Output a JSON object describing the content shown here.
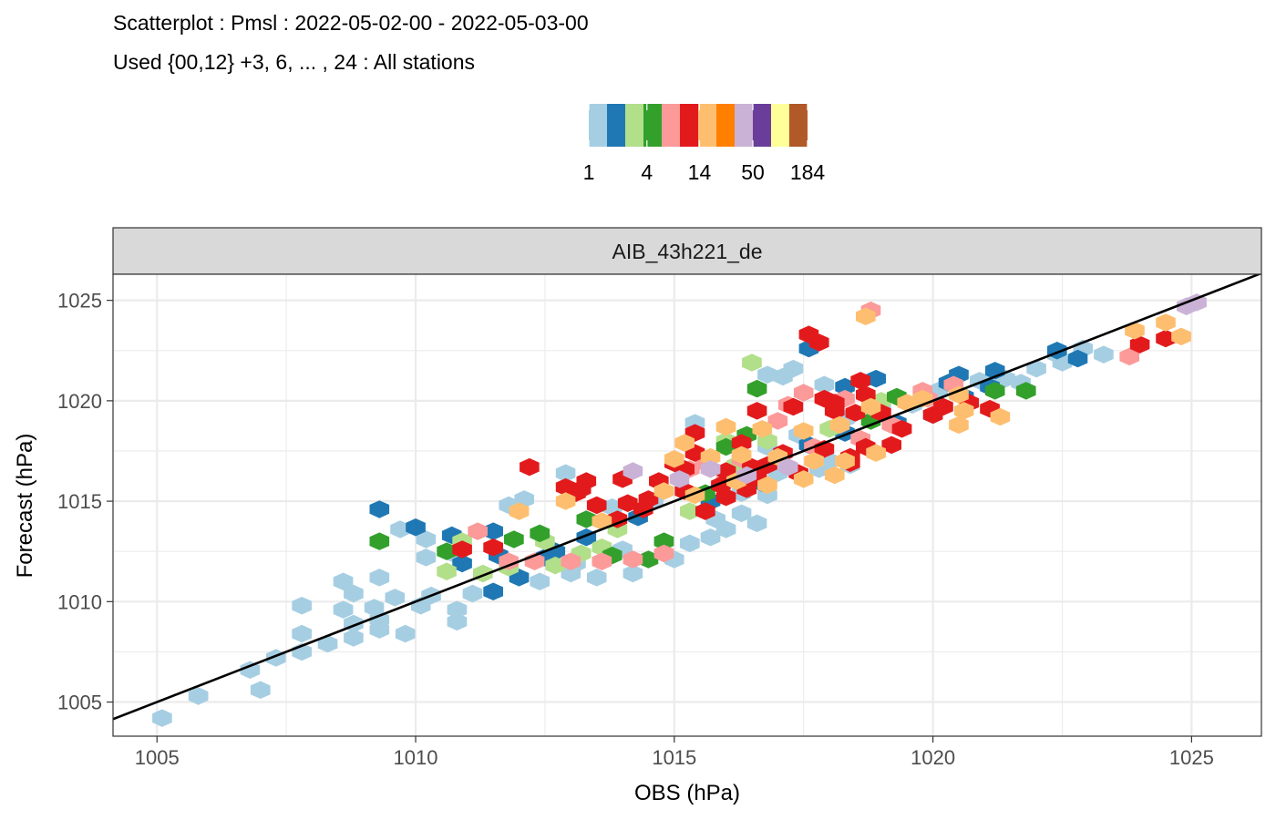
{
  "chart_data": {
    "type": "heatmap",
    "title": "Scatterplot : Pmsl : 2022-05-02-00 - 2022-05-03-00",
    "subtitle": "Used {00,12} +3, 6, ... , 24 : All stations",
    "facet_label": "AIB_43h221_de",
    "xlabel": "OBS (hPa)",
    "ylabel": "Forecast (hPa)",
    "xlim": [
      1004.15,
      1026.35
    ],
    "ylim": [
      1003.3,
      1026.3
    ],
    "x_ticks": [
      1005,
      1010,
      1015,
      1020,
      1025
    ],
    "y_ticks": [
      1005,
      1010,
      1015,
      1020,
      1025
    ],
    "grid": true,
    "legend": {
      "placement": "top",
      "scale": "log",
      "tick_labels": [
        "1",
        "4",
        "14",
        "50",
        "184"
      ],
      "tick_values": [
        1,
        4,
        14,
        50,
        184
      ],
      "colors": [
        "#a6cee3",
        "#1f78b4",
        "#b2df8a",
        "#33a02c",
        "#fb9a99",
        "#e31a1c",
        "#fdbf6f",
        "#ff7f00",
        "#cab2d6",
        "#6a3d9a",
        "#ffff99",
        "#b15928"
      ]
    },
    "reference_line": {
      "x1": 1004.15,
      "y1": 1004.15,
      "x2": 1026.35,
      "y2": 1026.35,
      "color": "#000000"
    },
    "hexbin": {
      "note": "approximate count per hexagonal bin; x = OBS (hPa), y = Forecast (hPa)",
      "points": [
        [
          1005.1,
          1004.2,
          1
        ],
        [
          1005.8,
          1005.3,
          1
        ],
        [
          1007.0,
          1005.6,
          1
        ],
        [
          1006.8,
          1006.6,
          1
        ],
        [
          1007.3,
          1007.2,
          1
        ],
        [
          1007.8,
          1007.5,
          1
        ],
        [
          1008.3,
          1007.9,
          1
        ],
        [
          1007.8,
          1008.4,
          1
        ],
        [
          1008.8,
          1008.2,
          1
        ],
        [
          1009.3,
          1008.6,
          1
        ],
        [
          1009.8,
          1008.4,
          1
        ],
        [
          1008.8,
          1008.9,
          1
        ],
        [
          1009.3,
          1009.1,
          1
        ],
        [
          1008.6,
          1009.6,
          1
        ],
        [
          1009.2,
          1009.7,
          1
        ],
        [
          1009.6,
          1010.2,
          1
        ],
        [
          1010.1,
          1009.8,
          1
        ],
        [
          1010.3,
          1010.3,
          1
        ],
        [
          1008.8,
          1010.4,
          1
        ],
        [
          1009.3,
          1011.2,
          1
        ],
        [
          1008.6,
          1011.0,
          1
        ],
        [
          1010.8,
          1009.6,
          1
        ],
        [
          1011.1,
          1010.4,
          1
        ],
        [
          1007.8,
          1009.8,
          1
        ],
        [
          1010.2,
          1012.2,
          1
        ],
        [
          1010.8,
          1012.3,
          1
        ],
        [
          1012.4,
          1011.0,
          1
        ],
        [
          1013.0,
          1011.4,
          1
        ],
        [
          1013.5,
          1011.2,
          1
        ],
        [
          1014.2,
          1011.4,
          1
        ],
        [
          1015.0,
          1012.1,
          1
        ],
        [
          1015.3,
          1012.9,
          1
        ],
        [
          1015.7,
          1013.2,
          1
        ],
        [
          1016.0,
          1013.6,
          1
        ],
        [
          1015.8,
          1014.1,
          1
        ],
        [
          1016.3,
          1014.4,
          1
        ],
        [
          1016.6,
          1013.9,
          1
        ],
        [
          1016.3,
          1015.4,
          1
        ],
        [
          1016.8,
          1015.3,
          1
        ],
        [
          1017.0,
          1016.4,
          1
        ],
        [
          1017.8,
          1016.6,
          1
        ],
        [
          1018.0,
          1017.0,
          1
        ],
        [
          1018.4,
          1016.8,
          1
        ],
        [
          1016.8,
          1017.7,
          1
        ],
        [
          1017.4,
          1018.3,
          1
        ],
        [
          1015.4,
          1018.9,
          1
        ],
        [
          1018.3,
          1019.1,
          1
        ],
        [
          1019.0,
          1019.6,
          1
        ],
        [
          1019.6,
          1019.8,
          1
        ],
        [
          1020.1,
          1020.5,
          1
        ],
        [
          1020.9,
          1021.0,
          1
        ],
        [
          1021.4,
          1021.1,
          1
        ],
        [
          1021.7,
          1020.9,
          1
        ],
        [
          1022.0,
          1021.6,
          1
        ],
        [
          1022.5,
          1021.9,
          1
        ],
        [
          1022.9,
          1022.6,
          1
        ],
        [
          1023.3,
          1022.3,
          1
        ],
        [
          1022.4,
          1022.3,
          1
        ],
        [
          1016.8,
          1021.3,
          1
        ],
        [
          1017.1,
          1021.2,
          1
        ],
        [
          1017.3,
          1021.6,
          1
        ],
        [
          1017.9,
          1020.8,
          1
        ],
        [
          1012.9,
          1016.4,
          1
        ],
        [
          1012.1,
          1015.1,
          1
        ],
        [
          1011.8,
          1014.8,
          1
        ],
        [
          1013.1,
          1011.9,
          1
        ],
        [
          1014.0,
          1012.6,
          1
        ],
        [
          1010.8,
          1009.0,
          1
        ],
        [
          1009.7,
          1013.6,
          1
        ],
        [
          1010.2,
          1013.1,
          1
        ],
        [
          1014.6,
          1015.0,
          1
        ],
        [
          1013.8,
          1014.7,
          1
        ],
        [
          1011.6,
          1012.3,
          2
        ],
        [
          1012.5,
          1012.2,
          2
        ],
        [
          1012.0,
          1011.2,
          2
        ],
        [
          1010.9,
          1011.9,
          2
        ],
        [
          1011.5,
          1010.5,
          2
        ],
        [
          1010.0,
          1013.7,
          2
        ],
        [
          1010.7,
          1013.3,
          2
        ],
        [
          1013.3,
          1013.2,
          2
        ],
        [
          1014.3,
          1014.2,
          2
        ],
        [
          1015.7,
          1015.0,
          2
        ],
        [
          1016.7,
          1015.9,
          2
        ],
        [
          1017.6,
          1017.8,
          2
        ],
        [
          1018.3,
          1018.4,
          2
        ],
        [
          1019.3,
          1018.9,
          2
        ],
        [
          1020.0,
          1019.3,
          2
        ],
        [
          1020.6,
          1020.2,
          2
        ],
        [
          1021.1,
          1020.7,
          2
        ],
        [
          1020.3,
          1020.9,
          2
        ],
        [
          1020.5,
          1021.3,
          2
        ],
        [
          1021.2,
          1021.5,
          2
        ],
        [
          1022.4,
          1022.5,
          2
        ],
        [
          1022.8,
          1022.1,
          2
        ],
        [
          1018.3,
          1020.7,
          2
        ],
        [
          1017.6,
          1022.6,
          2
        ],
        [
          1018.9,
          1021.1,
          2
        ],
        [
          1009.3,
          1014.6,
          2
        ],
        [
          1011.5,
          1013.5,
          2
        ],
        [
          1012.7,
          1012.5,
          2
        ],
        [
          1010.6,
          1011.5,
          3
        ],
        [
          1011.3,
          1011.4,
          3
        ],
        [
          1011.8,
          1011.7,
          3
        ],
        [
          1012.7,
          1011.8,
          3
        ],
        [
          1010.9,
          1013.0,
          3
        ],
        [
          1012.5,
          1013.0,
          3
        ],
        [
          1013.2,
          1012.4,
          3
        ],
        [
          1013.9,
          1013.6,
          3
        ],
        [
          1013.6,
          1012.7,
          3
        ],
        [
          1015.3,
          1014.5,
          3
        ],
        [
          1016.2,
          1016.8,
          3
        ],
        [
          1016.0,
          1018.0,
          3
        ],
        [
          1016.8,
          1018.0,
          3
        ],
        [
          1018.0,
          1018.6,
          3
        ],
        [
          1019.0,
          1020.0,
          3
        ],
        [
          1016.5,
          1021.9,
          3
        ],
        [
          1010.6,
          1012.5,
          4
        ],
        [
          1011.9,
          1013.1,
          4
        ],
        [
          1012.4,
          1013.4,
          4
        ],
        [
          1013.3,
          1014.1,
          4
        ],
        [
          1013.8,
          1012.3,
          4
        ],
        [
          1014.5,
          1012.1,
          4
        ],
        [
          1014.8,
          1013.0,
          4
        ],
        [
          1015.6,
          1015.4,
          4
        ],
        [
          1016.0,
          1017.7,
          4
        ],
        [
          1016.4,
          1018.3,
          4
        ],
        [
          1018.8,
          1019.0,
          4
        ],
        [
          1019.3,
          1020.2,
          4
        ],
        [
          1021.2,
          1020.5,
          4
        ],
        [
          1021.8,
          1020.5,
          4
        ],
        [
          1016.6,
          1020.6,
          4
        ],
        [
          1009.3,
          1013.0,
          4
        ],
        [
          1011.2,
          1013.5,
          6
        ],
        [
          1011.8,
          1012.0,
          6
        ],
        [
          1012.3,
          1012.0,
          6
        ],
        [
          1013.0,
          1012.0,
          6
        ],
        [
          1013.6,
          1012.0,
          6
        ],
        [
          1014.2,
          1012.1,
          6
        ],
        [
          1014.8,
          1012.4,
          6
        ],
        [
          1015.3,
          1016.6,
          6
        ],
        [
          1015.6,
          1016.9,
          6
        ],
        [
          1017.0,
          1019.0,
          6
        ],
        [
          1017.7,
          1017.7,
          6
        ],
        [
          1018.6,
          1018.1,
          6
        ],
        [
          1019.8,
          1020.5,
          6
        ],
        [
          1020.4,
          1020.8,
          6
        ],
        [
          1017.2,
          1019.8,
          6
        ],
        [
          1017.5,
          1020.4,
          6
        ],
        [
          1018.3,
          1020.1,
          6
        ],
        [
          1016.0,
          1016.0,
          6
        ],
        [
          1016.3,
          1017.1,
          6
        ],
        [
          1019.2,
          1018.8,
          6
        ],
        [
          1019.9,
          1020.1,
          6
        ],
        [
          1023.8,
          1022.2,
          6
        ],
        [
          1018.8,
          1024.5,
          6
        ],
        [
          1013.3,
          1016.0,
          10
        ],
        [
          1014.0,
          1016.1,
          10
        ],
        [
          1014.7,
          1016.0,
          10
        ],
        [
          1015.2,
          1016.6,
          10
        ],
        [
          1016.0,
          1016.5,
          10
        ],
        [
          1016.6,
          1016.2,
          10
        ],
        [
          1013.1,
          1015.4,
          10
        ],
        [
          1013.9,
          1014.1,
          10
        ],
        [
          1014.4,
          1014.6,
          10
        ],
        [
          1015.6,
          1014.5,
          10
        ],
        [
          1016.0,
          1015.2,
          10
        ],
        [
          1016.8,
          1016.8,
          10
        ],
        [
          1017.4,
          1016.4,
          10
        ],
        [
          1018.4,
          1017.2,
          10
        ],
        [
          1019.2,
          1017.8,
          10
        ],
        [
          1015.4,
          1017.4,
          10
        ],
        [
          1016.3,
          1017.9,
          10
        ],
        [
          1018.1,
          1019.5,
          10
        ],
        [
          1019.0,
          1019.4,
          10
        ],
        [
          1020.0,
          1019.3,
          10
        ],
        [
          1020.7,
          1019.9,
          10
        ],
        [
          1021.1,
          1019.6,
          10
        ],
        [
          1018.6,
          1021.0,
          10
        ],
        [
          1017.6,
          1023.3,
          10
        ],
        [
          1017.8,
          1022.9,
          10
        ],
        [
          1024.0,
          1022.8,
          10
        ],
        [
          1024.5,
          1023.1,
          10
        ],
        [
          1012.9,
          1015.7,
          10
        ],
        [
          1013.5,
          1014.8,
          10
        ],
        [
          1014.5,
          1015.1,
          10
        ],
        [
          1010.9,
          1012.6,
          10
        ],
        [
          1011.5,
          1012.7,
          10
        ],
        [
          1014.1,
          1014.9,
          10
        ],
        [
          1015.0,
          1016.9,
          10
        ],
        [
          1016.4,
          1015.6,
          10
        ],
        [
          1018.4,
          1016.9,
          10
        ],
        [
          1018.7,
          1017.7,
          10
        ],
        [
          1019.4,
          1018.6,
          10
        ],
        [
          1020.2,
          1019.7,
          10
        ],
        [
          1015.4,
          1018.4,
          10
        ],
        [
          1016.6,
          1019.5,
          10
        ],
        [
          1017.3,
          1019.7,
          10
        ],
        [
          1018.1,
          1019.9,
          10
        ],
        [
          1018.7,
          1020.3,
          10
        ],
        [
          1017.9,
          1020.1,
          10
        ],
        [
          1018.5,
          1019.4,
          10
        ],
        [
          1015.2,
          1015.5,
          10
        ],
        [
          1015.9,
          1015.8,
          10
        ],
        [
          1016.5,
          1016.7,
          10
        ],
        [
          1017.1,
          1017.4,
          10
        ],
        [
          1017.9,
          1017.6,
          10
        ],
        [
          1012.2,
          1016.7,
          10
        ],
        [
          1013.2,
          1015.6,
          10
        ],
        [
          1015.0,
          1017.1,
          16
        ],
        [
          1015.7,
          1017.2,
          16
        ],
        [
          1016.3,
          1017.3,
          16
        ],
        [
          1017.0,
          1017.2,
          16
        ],
        [
          1017.7,
          1017.0,
          16
        ],
        [
          1018.3,
          1017.0,
          16
        ],
        [
          1018.9,
          1017.4,
          16
        ],
        [
          1016.2,
          1016.0,
          16
        ],
        [
          1016.8,
          1015.8,
          16
        ],
        [
          1017.5,
          1016.1,
          16
        ],
        [
          1015.2,
          1017.9,
          16
        ],
        [
          1016.0,
          1018.7,
          16
        ],
        [
          1016.7,
          1018.6,
          16
        ],
        [
          1017.5,
          1018.5,
          16
        ],
        [
          1018.2,
          1018.8,
          16
        ],
        [
          1018.8,
          1019.7,
          16
        ],
        [
          1019.5,
          1019.9,
          16
        ],
        [
          1020.6,
          1019.5,
          16
        ],
        [
          1020.5,
          1018.8,
          16
        ],
        [
          1021.3,
          1019.2,
          16
        ],
        [
          1019.8,
          1020.1,
          16
        ],
        [
          1020.5,
          1020.3,
          16
        ],
        [
          1023.9,
          1023.5,
          16
        ],
        [
          1024.8,
          1023.2,
          16
        ],
        [
          1024.5,
          1023.9,
          16
        ],
        [
          1013.6,
          1014.0,
          16
        ],
        [
          1012.0,
          1014.5,
          16
        ],
        [
          1012.9,
          1015.0,
          16
        ],
        [
          1014.8,
          1015.5,
          16
        ],
        [
          1015.4,
          1015.3,
          16
        ],
        [
          1018.7,
          1024.2,
          16
        ],
        [
          1018.1,
          1016.3,
          16
        ],
        [
          1014.2,
          1016.5,
          40
        ],
        [
          1015.1,
          1016.1,
          40
        ],
        [
          1015.7,
          1016.6,
          40
        ],
        [
          1016.4,
          1016.3,
          40
        ],
        [
          1017.2,
          1016.7,
          40
        ],
        [
          1024.9,
          1024.7,
          40
        ],
        [
          1025.1,
          1024.9,
          40
        ]
      ]
    }
  }
}
